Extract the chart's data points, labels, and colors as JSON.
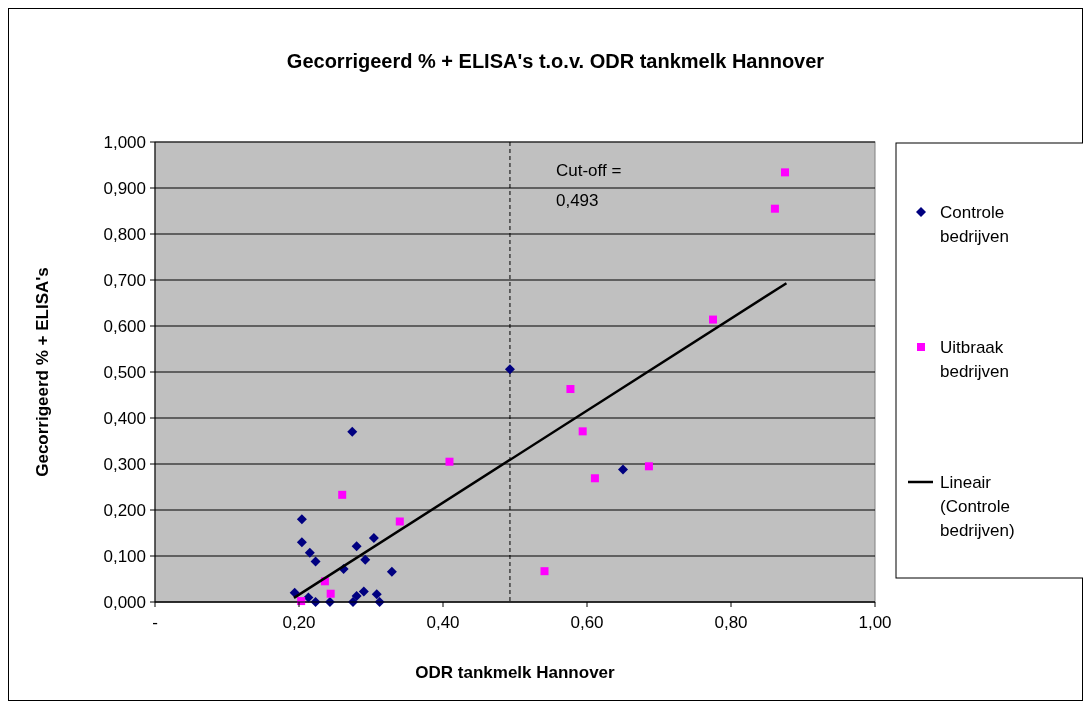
{
  "chart_data": {
    "type": "scatter",
    "title": "Gecorrigeerd % + ELISA's t.o.v. ODR tankmelk Hannover",
    "xlabel": "ODR tankmelk Hannover",
    "ylabel": "Gecorrigeerd % + ELISA's",
    "xlim": [
      0,
      1
    ],
    "ylim": [
      0,
      1
    ],
    "xticks": [
      {
        "value": 0,
        "label": "-"
      },
      {
        "value": 0.2,
        "label": "0,20"
      },
      {
        "value": 0.4,
        "label": "0,40"
      },
      {
        "value": 0.6,
        "label": "0,60"
      },
      {
        "value": 0.8,
        "label": "0,80"
      },
      {
        "value": 1,
        "label": "1,00"
      }
    ],
    "yticks": [
      {
        "value": 0,
        "label": "0,000"
      },
      {
        "value": 0.1,
        "label": "0,100"
      },
      {
        "value": 0.2,
        "label": "0,200"
      },
      {
        "value": 0.3,
        "label": "0,300"
      },
      {
        "value": 0.4,
        "label": "0,400"
      },
      {
        "value": 0.5,
        "label": "0,500"
      },
      {
        "value": 0.6,
        "label": "0,600"
      },
      {
        "value": 0.7,
        "label": "0,700"
      },
      {
        "value": 0.8,
        "label": "0,800"
      },
      {
        "value": 0.9,
        "label": "0,900"
      },
      {
        "value": 1,
        "label": "1,000"
      }
    ],
    "grid": "y",
    "legend": "right",
    "ref_lines": [
      {
        "axis": "x",
        "value": 0.493,
        "label": "Cut-off =\n0,493",
        "color": "#000000",
        "line_style": "dashed"
      }
    ],
    "series": [
      {
        "name": "Controle bedrijven",
        "type": "scatter",
        "color": "#000080",
        "marker": "diamond",
        "x": [
          0.274,
          0.204,
          0.204,
          0.215,
          0.223,
          0.304,
          0.28,
          0.292,
          0.262,
          0.329,
          0.194,
          0.213,
          0.223,
          0.243,
          0.275,
          0.28,
          0.29,
          0.308,
          0.312,
          0.493,
          0.65
        ],
        "values": [
          0.37,
          0.18,
          0.13,
          0.107,
          0.088,
          0.139,
          0.121,
          0.092,
          0.072,
          0.066,
          0.02,
          0.01,
          0,
          0,
          0,
          0.013,
          0.023,
          0.017,
          0,
          0.506,
          0.288
        ]
      },
      {
        "name": "Uitbraak bedrijven",
        "type": "scatter",
        "color": "#ff00ff",
        "marker": "square",
        "x": [
          0.875,
          0.861,
          0.775,
          0.577,
          0.594,
          0.611,
          0.686,
          0.409,
          0.541,
          0.26,
          0.34,
          0.236,
          0.244,
          0.203
        ],
        "values": [
          0.934,
          0.855,
          0.614,
          0.463,
          0.371,
          0.269,
          0.295,
          0.305,
          0.067,
          0.233,
          0.175,
          0.045,
          0.018,
          0.002
        ]
      },
      {
        "name": "Lineair (Controle bedrijven)",
        "type": "line",
        "color": "#000000",
        "marker": "none",
        "line_style": "solid",
        "x": [
          0.193,
          0.877
        ],
        "values": [
          0.009,
          0.693
        ]
      }
    ]
  }
}
